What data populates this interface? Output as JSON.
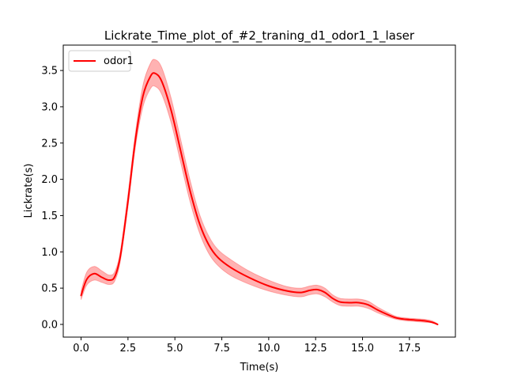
{
  "chart_data": {
    "type": "line",
    "title": "Lickrate_Time_plot_of_#2_traning_d1_odor1_1_laser",
    "xlabel": "Time(s)",
    "ylabel": "Lickrate(s)",
    "xlim": [
      -0.95,
      19.95
    ],
    "ylim": [
      -0.175,
      3.85
    ],
    "xticks": [
      0.0,
      2.5,
      5.0,
      7.5,
      10.0,
      12.5,
      15.0,
      17.5
    ],
    "xtick_labels": [
      "0.0",
      "2.5",
      "5.0",
      "7.5",
      "10.0",
      "12.5",
      "15.0",
      "17.5"
    ],
    "yticks": [
      0.0,
      0.5,
      1.0,
      1.5,
      2.0,
      2.5,
      3.0,
      3.5
    ],
    "ytick_labels": [
      "0.0",
      "0.5",
      "1.0",
      "1.5",
      "2.0",
      "2.5",
      "3.0",
      "3.5"
    ],
    "grid": false,
    "legend_position": "top-left",
    "series": [
      {
        "name": "odor1",
        "color": "#ff0000",
        "band_color": "#ff0000",
        "band_opacity": 0.3,
        "x": [
          0.0,
          0.3,
          0.7,
          1.1,
          1.5,
          1.8,
          2.1,
          2.5,
          2.9,
          3.3,
          3.7,
          3.95,
          4.3,
          4.8,
          5.3,
          5.8,
          6.3,
          6.8,
          7.3,
          8.0,
          9.0,
          10.0,
          11.0,
          11.7,
          12.2,
          12.6,
          13.0,
          13.4,
          13.8,
          14.3,
          14.8,
          15.3,
          15.8,
          16.3,
          16.8,
          17.3,
          17.8,
          18.3,
          18.7,
          19.0
        ],
        "y": [
          0.4,
          0.62,
          0.7,
          0.65,
          0.61,
          0.66,
          0.95,
          1.7,
          2.55,
          3.15,
          3.42,
          3.46,
          3.35,
          2.95,
          2.4,
          1.85,
          1.4,
          1.1,
          0.92,
          0.78,
          0.64,
          0.53,
          0.46,
          0.44,
          0.47,
          0.48,
          0.44,
          0.36,
          0.31,
          0.3,
          0.3,
          0.27,
          0.2,
          0.14,
          0.09,
          0.07,
          0.06,
          0.05,
          0.03,
          0.0
        ],
        "lower": [
          0.34,
          0.54,
          0.61,
          0.58,
          0.55,
          0.6,
          0.88,
          1.62,
          2.45,
          3.0,
          3.25,
          3.28,
          3.17,
          2.78,
          2.24,
          1.7,
          1.27,
          0.98,
          0.81,
          0.67,
          0.55,
          0.46,
          0.4,
          0.38,
          0.41,
          0.42,
          0.38,
          0.31,
          0.26,
          0.25,
          0.25,
          0.22,
          0.16,
          0.11,
          0.07,
          0.05,
          0.04,
          0.03,
          0.02,
          0.0
        ],
        "upper": [
          0.46,
          0.72,
          0.8,
          0.74,
          0.68,
          0.73,
          1.02,
          1.8,
          2.65,
          3.3,
          3.6,
          3.65,
          3.54,
          3.12,
          2.56,
          2.0,
          1.53,
          1.22,
          1.03,
          0.89,
          0.73,
          0.61,
          0.52,
          0.5,
          0.53,
          0.54,
          0.5,
          0.41,
          0.36,
          0.35,
          0.35,
          0.32,
          0.24,
          0.17,
          0.11,
          0.09,
          0.08,
          0.07,
          0.05,
          0.01
        ]
      }
    ]
  }
}
